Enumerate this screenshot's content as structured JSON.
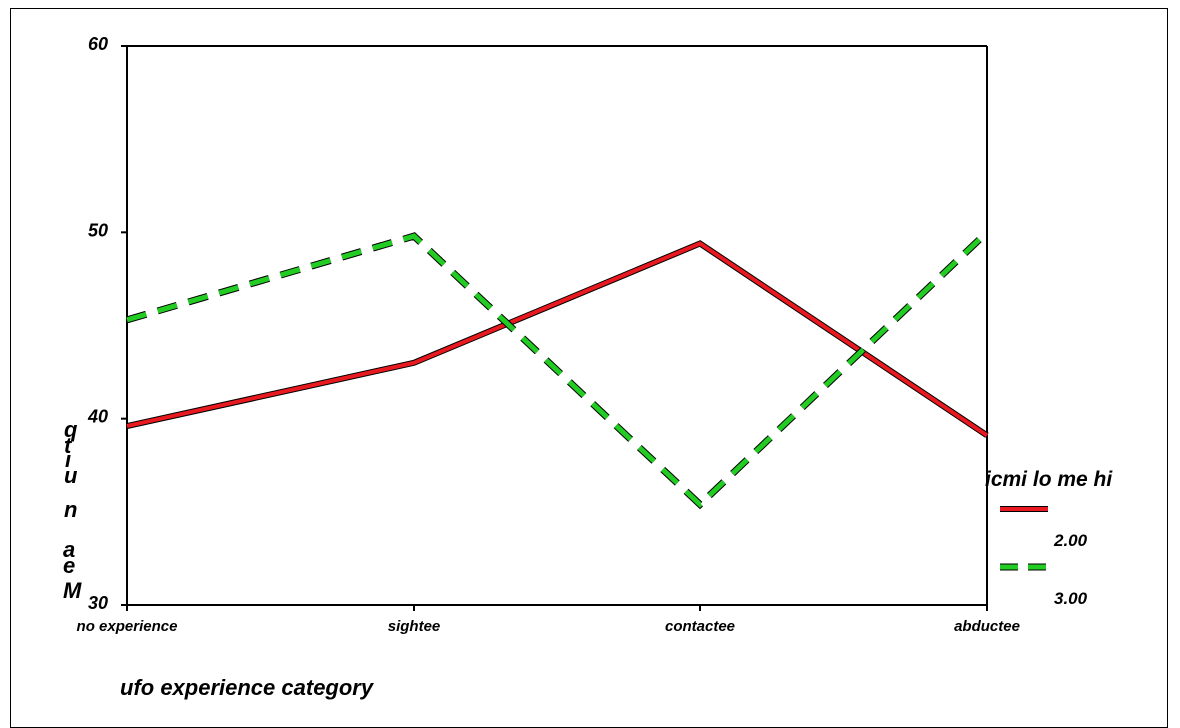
{
  "chart_data": {
    "type": "line",
    "categories": [
      "no experience",
      "sightee",
      "contactee",
      "abductee"
    ],
    "series": [
      {
        "name": "2.00",
        "values": [
          39.6,
          43.0,
          49.4,
          39.1
        ],
        "color": "#e8191f",
        "dashed": false
      },
      {
        "name": "3.00",
        "values": [
          45.3,
          49.8,
          35.4,
          50.0
        ],
        "color": "#22cc22",
        "dashed": true
      }
    ],
    "title": "",
    "xlabel": "ufo experience category",
    "ylabel": "Mean quit",
    "ylabel_rendered": "qtıu n aeM",
    "legend_title": "icmi lo me hi",
    "legend_position": "right",
    "ylim": [
      30,
      60
    ],
    "yticks": [
      30,
      40,
      50,
      60
    ],
    "ytick_labels": [
      "30",
      "40",
      "50",
      "60"
    ],
    "grid": false
  }
}
